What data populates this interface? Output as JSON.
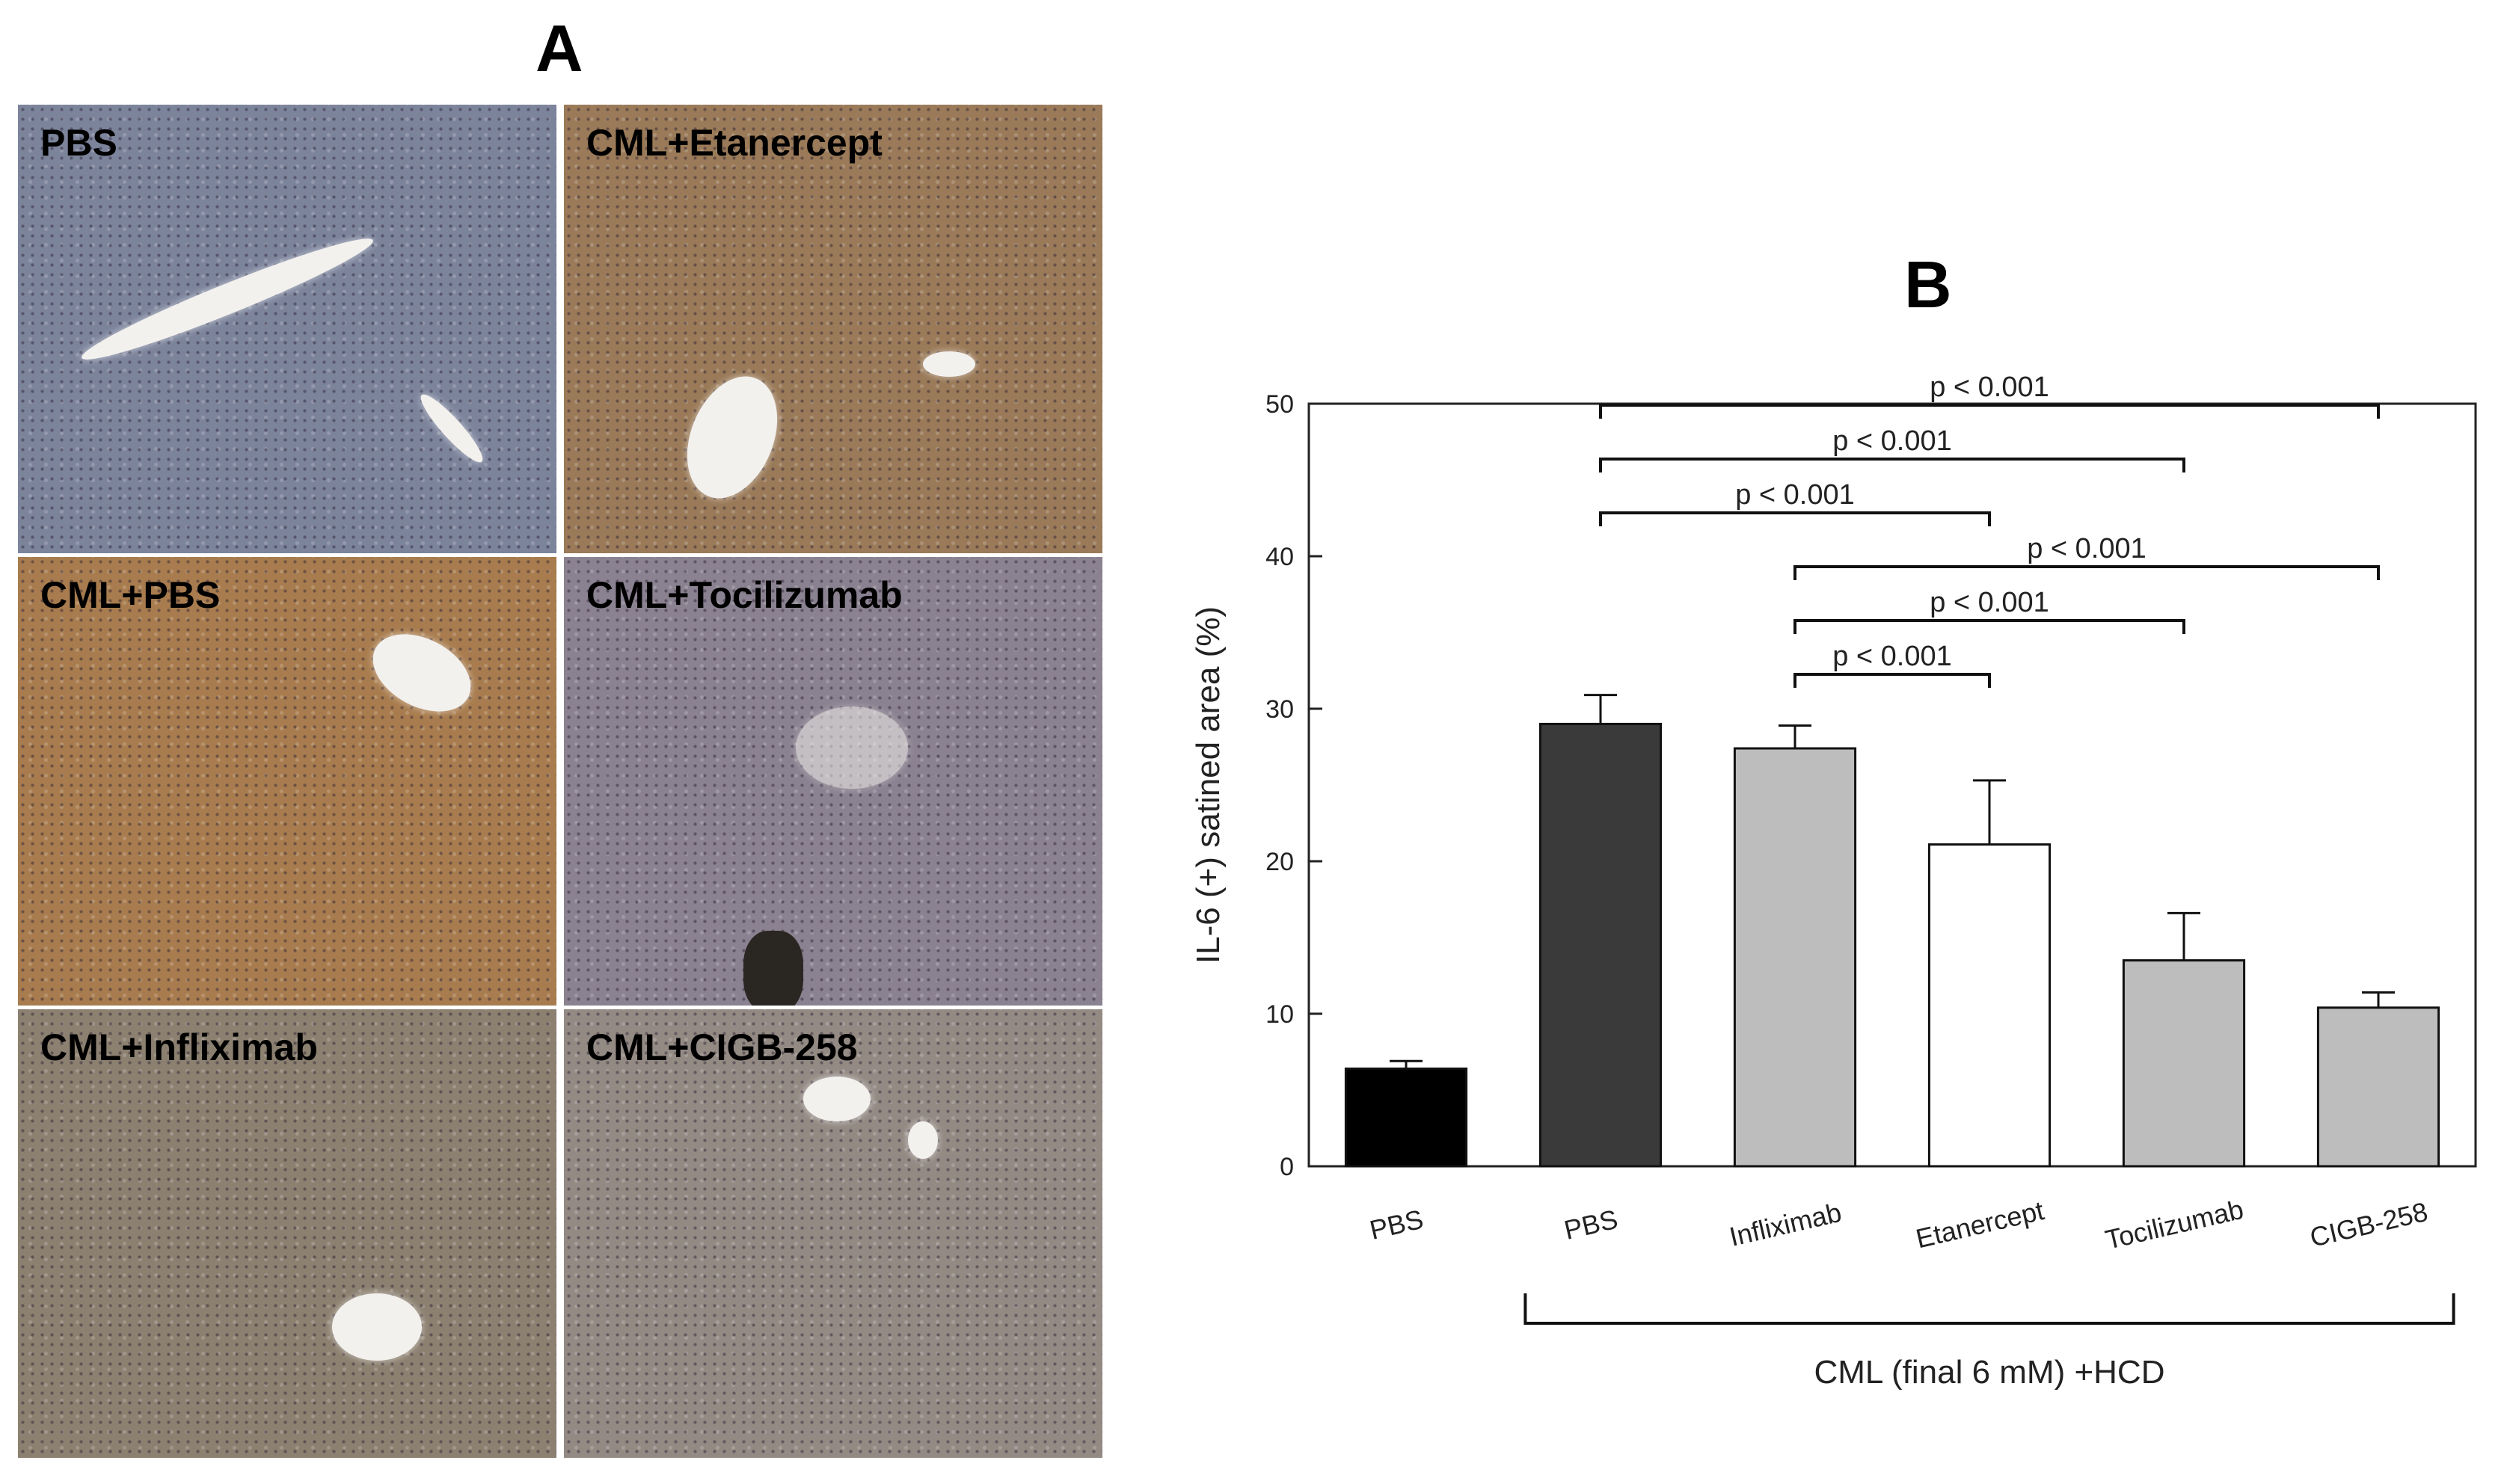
{
  "panel_a": {
    "letter": "A",
    "panels": [
      {
        "label": "PBS",
        "stain_color": "#7c849c"
      },
      {
        "label": "CML+Etanercept",
        "stain_color": "#9a7a58"
      },
      {
        "label": "CML+PBS",
        "stain_color": "#a87c4e"
      },
      {
        "label": "CML+Tocilizumab",
        "stain_color": "#8a8290"
      },
      {
        "label": "CML+Infliximab",
        "stain_color": "#8c8070"
      },
      {
        "label": "CML+CIGB-258",
        "stain_color": "#948a84"
      }
    ]
  },
  "panel_b": {
    "letter": "B",
    "group_caption": "CML (final 6 mM) +HCD"
  },
  "chart_data": {
    "type": "bar",
    "title": "",
    "xlabel": "",
    "ylabel": "IL-6 (+) satined area (%)",
    "ylim": [
      0,
      50
    ],
    "yticks": [
      0,
      10,
      20,
      30,
      40,
      50
    ],
    "categories": [
      "PBS",
      "PBS",
      "Infliximab",
      "Etanercept",
      "Tocilizumab",
      "CIGB-258"
    ],
    "values": [
      6.4,
      29.0,
      27.4,
      21.1,
      13.5,
      10.4
    ],
    "errors": [
      0.5,
      1.9,
      1.5,
      4.2,
      3.1,
      1.0
    ],
    "bar_colors": [
      "#000000",
      "#3a3a3a",
      "#bdbdbd",
      "#ffffff",
      "#bdbdbd",
      "#bdbdbd"
    ],
    "comparisons": [
      {
        "from": 1,
        "to": 5,
        "label": "p < 0.001"
      },
      {
        "from": 1,
        "to": 4,
        "label": "p < 0.001"
      },
      {
        "from": 1,
        "to": 3,
        "label": "p < 0.001"
      },
      {
        "from": 2,
        "to": 5,
        "label": "p < 0.001"
      },
      {
        "from": 2,
        "to": 4,
        "label": "p < 0.001"
      },
      {
        "from": 2,
        "to": 3,
        "label": "p < 0.001"
      }
    ],
    "group_bracket": {
      "from": 1,
      "to": 5
    }
  }
}
